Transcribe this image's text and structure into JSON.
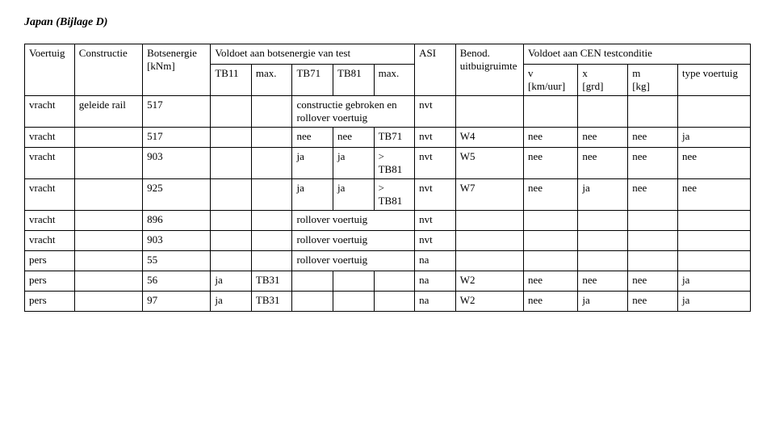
{
  "title": "Japan (Bijlage D)",
  "header": {
    "voertuig": "Voertuig",
    "constructie": "Constructie",
    "botsenergie": "Botsenergie",
    "botsenergie_unit": "[kNm]",
    "voldoet_bots": "Voldoet aan botsenergie van test",
    "tb11": "TB11",
    "max1": "max.",
    "tb71": "TB71",
    "tb81": "TB81",
    "max2": "max.",
    "asi": "ASI",
    "benod": "Benod.",
    "uitbuigruimte": "uitbuigruimte",
    "voldoet_cen": "Voldoet aan CEN testconditie",
    "v": "v",
    "v_unit": "[km/uur]",
    "x": "x",
    "x_unit": "[grd]",
    "m": "m",
    "m_unit": "[kg]",
    "type": "type voertuig"
  },
  "rows": [
    {
      "voertuig": "vracht",
      "constructie": "geleide rail",
      "bots": "517",
      "tb11": "",
      "max1": "",
      "tb71": "",
      "tb81": "",
      "max2": "",
      "mid_span": "constructie gebroken en rollover voertuig",
      "asi": "nvt",
      "benod": "",
      "v": "",
      "x": "",
      "m": "",
      "type": ""
    },
    {
      "voertuig": "vracht",
      "constructie": "",
      "bots": "517",
      "tb11": "",
      "max1": "",
      "tb71": "nee",
      "tb81": "nee",
      "max2": "TB71",
      "asi": "nvt",
      "benod": "W4",
      "v": "nee",
      "x": "nee",
      "m": "nee",
      "type": "ja"
    },
    {
      "voertuig": "vracht",
      "constructie": "",
      "bots": "903",
      "tb11": "",
      "max1": "",
      "tb71": "ja",
      "tb81": "ja",
      "max2": "> TB81",
      "asi": "nvt",
      "benod": "W5",
      "v": "nee",
      "x": "nee",
      "m": "nee",
      "type": "nee"
    },
    {
      "voertuig": "vracht",
      "constructie": "",
      "bots": "925",
      "tb11": "",
      "max1": "",
      "tb71": "ja",
      "tb81": "ja",
      "max2": "> TB81",
      "asi": "nvt",
      "benod": "W7",
      "v": "nee",
      "x": "ja",
      "m": "nee",
      "type": "nee"
    },
    {
      "voertuig": "vracht",
      "constructie": "",
      "bots": "896",
      "tb11": "",
      "max1": "",
      "tb71": "",
      "tb81": "",
      "max2": "",
      "mid_span": "rollover voertuig",
      "asi": "nvt",
      "benod": "",
      "v": "",
      "x": "",
      "m": "",
      "type": ""
    },
    {
      "voertuig": "vracht",
      "constructie": "",
      "bots": "903",
      "tb11": "",
      "max1": "",
      "tb71": "",
      "tb81": "",
      "max2": "",
      "mid_span": "rollover voertuig",
      "asi": "nvt",
      "benod": "",
      "v": "",
      "x": "",
      "m": "",
      "type": ""
    },
    {
      "voertuig": "pers",
      "constructie": "",
      "bots": "55",
      "tb11": "",
      "max1": "",
      "tb71": "",
      "tb81": "",
      "max2": "",
      "mid_span": "rollover voertuig",
      "asi": "na",
      "benod": "",
      "v": "",
      "x": "",
      "m": "",
      "type": ""
    },
    {
      "voertuig": "pers",
      "constructie": "",
      "bots": "56",
      "tb11": "ja",
      "max1": "TB31",
      "tb71": "",
      "tb81": "",
      "max2": "",
      "asi": "na",
      "benod": "W2",
      "v": "nee",
      "x": "nee",
      "m": "nee",
      "type": "ja"
    },
    {
      "voertuig": "pers",
      "constructie": "",
      "bots": "97",
      "tb11": "ja",
      "max1": "TB31",
      "tb71": "",
      "tb81": "",
      "max2": "",
      "asi": "na",
      "benod": "W2",
      "v": "nee",
      "x": "ja",
      "m": "nee",
      "type": "ja"
    }
  ]
}
